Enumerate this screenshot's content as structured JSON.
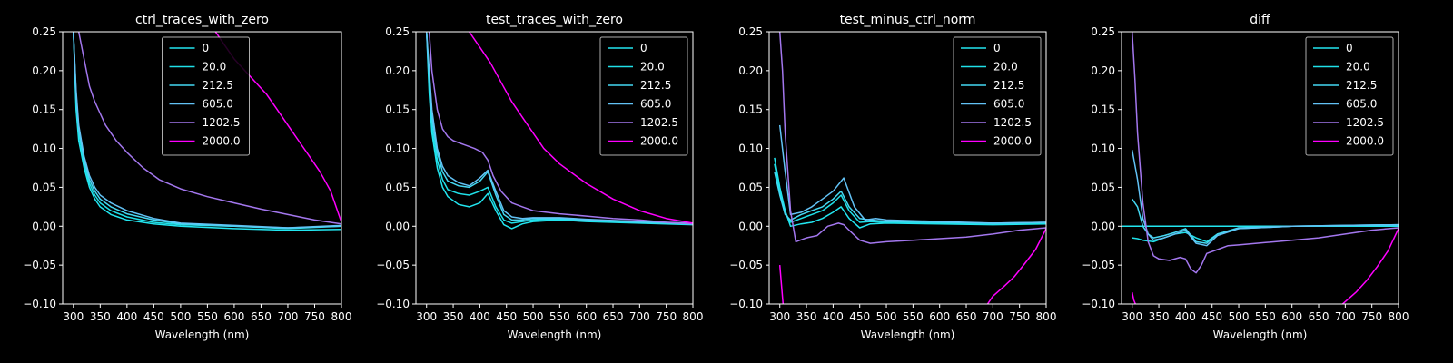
{
  "chart_data": [
    {
      "type": "line",
      "title": "ctrl_traces_with_zero",
      "xlabel": "Wavelength (nm)",
      "ylabel": "",
      "xlim": [
        280,
        800
      ],
      "ylim": [
        -0.1,
        0.25
      ],
      "xticks": [
        "300",
        "350",
        "400",
        "450",
        "500",
        "550",
        "600",
        "650",
        "700",
        "750",
        "800"
      ],
      "yticks": [
        "−0.10",
        "−0.05",
        "0.00",
        "0.05",
        "0.10",
        "0.15",
        "0.20",
        "0.25"
      ],
      "legend_position": "top-center",
      "grid": false,
      "series": [
        {
          "name": "0",
          "color": "#22e6f0",
          "x": [
            300,
            305,
            310,
            320,
            330,
            340,
            350,
            370,
            400,
            450,
            500,
            600,
            700,
            800
          ],
          "y": [
            0.25,
            0.15,
            0.11,
            0.075,
            0.05,
            0.035,
            0.025,
            0.015,
            0.008,
            0.003,
            0.0,
            -0.003,
            -0.005,
            -0.004
          ]
        },
        {
          "name": "20.0",
          "color": "#1fe0e8",
          "x": [
            300,
            305,
            310,
            320,
            330,
            340,
            350,
            370,
            400,
            450,
            500,
            600,
            700,
            800
          ],
          "y": [
            0.25,
            0.16,
            0.12,
            0.08,
            0.055,
            0.04,
            0.03,
            0.02,
            0.012,
            0.005,
            0.002,
            0.0,
            -0.003,
            0.0
          ]
        },
        {
          "name": "212.5",
          "color": "#44d8f2",
          "x": [
            300,
            305,
            310,
            320,
            330,
            340,
            350,
            370,
            400,
            450,
            500,
            600,
            700,
            800
          ],
          "y": [
            0.25,
            0.17,
            0.125,
            0.085,
            0.06,
            0.045,
            0.035,
            0.025,
            0.016,
            0.008,
            0.003,
            0.0,
            -0.002,
            0.0
          ]
        },
        {
          "name": "605.0",
          "color": "#62c2f5",
          "x": [
            300,
            305,
            310,
            320,
            330,
            340,
            350,
            370,
            400,
            450,
            500,
            600,
            700,
            800
          ],
          "y": [
            0.25,
            0.175,
            0.13,
            0.09,
            0.065,
            0.05,
            0.04,
            0.03,
            0.02,
            0.01,
            0.004,
            0.001,
            -0.002,
            0.001
          ]
        },
        {
          "name": "1202.5",
          "color": "#a377ee",
          "x": [
            310,
            320,
            330,
            340,
            350,
            360,
            370,
            380,
            400,
            430,
            460,
            500,
            550,
            600,
            650,
            700,
            750,
            800
          ],
          "y": [
            0.25,
            0.215,
            0.18,
            0.16,
            0.145,
            0.13,
            0.12,
            0.11,
            0.095,
            0.075,
            0.06,
            0.048,
            0.038,
            0.03,
            0.022,
            0.015,
            0.008,
            0.003
          ]
        },
        {
          "name": "2000.0",
          "color": "#ff00ff",
          "x": [
            565,
            580,
            600,
            620,
            640,
            660,
            680,
            700,
            720,
            740,
            760,
            780,
            800
          ],
          "y": [
            0.25,
            0.235,
            0.215,
            0.2,
            0.185,
            0.17,
            0.15,
            0.13,
            0.11,
            0.09,
            0.07,
            0.045,
            0.005
          ]
        }
      ]
    },
    {
      "type": "line",
      "title": "test_traces_with_zero",
      "xlabel": "Wavelength (nm)",
      "ylabel": "",
      "xlim": [
        280,
        800
      ],
      "ylim": [
        -0.1,
        0.25
      ],
      "xticks": [
        "300",
        "350",
        "400",
        "450",
        "500",
        "550",
        "600",
        "650",
        "700",
        "750",
        "800"
      ],
      "yticks": [
        "−0.10",
        "−0.05",
        "0.00",
        "0.05",
        "0.10",
        "0.15",
        "0.20",
        "0.25"
      ],
      "legend_position": "top-right",
      "grid": false,
      "series": [
        {
          "name": "0",
          "color": "#22e6f0",
          "x": [
            300,
            305,
            310,
            320,
            330,
            340,
            360,
            380,
            400,
            415,
            430,
            445,
            460,
            480,
            500,
            550,
            600,
            700,
            800
          ],
          "y": [
            0.25,
            0.17,
            0.12,
            0.075,
            0.05,
            0.038,
            0.028,
            0.025,
            0.03,
            0.042,
            0.02,
            0.002,
            -0.003,
            0.003,
            0.006,
            0.008,
            0.006,
            0.004,
            0.002
          ]
        },
        {
          "name": "20.0",
          "color": "#1fe0e8",
          "x": [
            300,
            305,
            310,
            320,
            330,
            340,
            360,
            380,
            400,
            415,
            430,
            445,
            460,
            480,
            500,
            550,
            600,
            700,
            800
          ],
          "y": [
            0.25,
            0.18,
            0.13,
            0.085,
            0.06,
            0.047,
            0.042,
            0.04,
            0.045,
            0.05,
            0.025,
            0.008,
            0.004,
            0.006,
            0.008,
            0.009,
            0.007,
            0.005,
            0.003
          ]
        },
        {
          "name": "212.5",
          "color": "#44d8f2",
          "x": [
            300,
            305,
            310,
            320,
            330,
            340,
            360,
            380,
            400,
            415,
            430,
            445,
            460,
            480,
            500,
            550,
            600,
            700,
            800
          ],
          "y": [
            0.25,
            0.19,
            0.14,
            0.095,
            0.07,
            0.058,
            0.052,
            0.05,
            0.058,
            0.07,
            0.04,
            0.015,
            0.008,
            0.008,
            0.01,
            0.01,
            0.008,
            0.005,
            0.003
          ]
        },
        {
          "name": "605.0",
          "color": "#62c2f5",
          "x": [
            300,
            305,
            310,
            320,
            330,
            340,
            360,
            380,
            400,
            415,
            430,
            445,
            460,
            480,
            500,
            550,
            600,
            700,
            800
          ],
          "y": [
            0.25,
            0.2,
            0.15,
            0.1,
            0.077,
            0.065,
            0.056,
            0.052,
            0.062,
            0.072,
            0.045,
            0.02,
            0.012,
            0.01,
            0.011,
            0.011,
            0.009,
            0.006,
            0.004
          ]
        },
        {
          "name": "1202.5",
          "color": "#a377ee",
          "x": [
            305,
            310,
            320,
            330,
            340,
            350,
            370,
            390,
            405,
            415,
            425,
            440,
            460,
            480,
            500,
            550,
            600,
            650,
            700,
            750,
            800
          ],
          "y": [
            0.25,
            0.2,
            0.15,
            0.125,
            0.115,
            0.11,
            0.105,
            0.1,
            0.095,
            0.085,
            0.065,
            0.045,
            0.03,
            0.025,
            0.02,
            0.016,
            0.013,
            0.01,
            0.008,
            0.005,
            0.003
          ]
        },
        {
          "name": "2000.0",
          "color": "#ff00ff",
          "x": [
            380,
            400,
            420,
            440,
            460,
            480,
            500,
            520,
            550,
            600,
            650,
            700,
            750,
            800
          ],
          "y": [
            0.25,
            0.23,
            0.21,
            0.185,
            0.16,
            0.14,
            0.12,
            0.1,
            0.08,
            0.055,
            0.035,
            0.02,
            0.01,
            0.004
          ]
        }
      ]
    },
    {
      "type": "line",
      "title": "test_minus_ctrl_norm",
      "xlabel": "Wavelength (nm)",
      "ylabel": "",
      "xlim": [
        280,
        800
      ],
      "ylim": [
        -0.1,
        0.25
      ],
      "xticks": [
        "300",
        "350",
        "400",
        "450",
        "500",
        "550",
        "600",
        "650",
        "700",
        "750",
        "800"
      ],
      "yticks": [
        "−0.10",
        "−0.05",
        "0.00",
        "0.05",
        "0.10",
        "0.15",
        "0.20",
        "0.25"
      ],
      "legend_position": "top-right",
      "grid": false,
      "series": [
        {
          "name": "0",
          "color": "#22e6f0",
          "x": [
            290,
            300,
            310,
            320,
            340,
            360,
            380,
            400,
            415,
            430,
            450,
            470,
            500,
            600,
            700,
            800
          ],
          "y": [
            0.088,
            0.05,
            0.02,
            0.0,
            0.003,
            0.005,
            0.01,
            0.018,
            0.025,
            0.01,
            -0.002,
            0.003,
            0.004,
            0.003,
            0.002,
            0.003
          ]
        },
        {
          "name": "20.0",
          "color": "#1fe0e8",
          "x": [
            290,
            300,
            310,
            320,
            340,
            360,
            380,
            400,
            415,
            430,
            450,
            470,
            500,
            600,
            700,
            800
          ],
          "y": [
            0.08,
            0.045,
            0.018,
            0.005,
            0.01,
            0.015,
            0.02,
            0.03,
            0.04,
            0.02,
            0.005,
            0.006,
            0.005,
            0.004,
            0.003,
            0.004
          ]
        },
        {
          "name": "212.5",
          "color": "#44d8f2",
          "x": [
            290,
            300,
            310,
            320,
            340,
            360,
            380,
            400,
            415,
            430,
            450,
            470,
            500,
            600,
            700,
            800
          ],
          "y": [
            0.07,
            0.04,
            0.015,
            0.008,
            0.015,
            0.02,
            0.025,
            0.035,
            0.045,
            0.025,
            0.01,
            0.008,
            0.006,
            0.005,
            0.004,
            0.005
          ]
        },
        {
          "name": "605.0",
          "color": "#62c2f5",
          "x": [
            300,
            310,
            320,
            340,
            360,
            380,
            400,
            420,
            440,
            460,
            480,
            500,
            600,
            700,
            800
          ],
          "y": [
            0.13,
            0.07,
            0.015,
            0.018,
            0.025,
            0.035,
            0.045,
            0.062,
            0.025,
            0.008,
            0.01,
            0.008,
            0.006,
            0.004,
            0.005
          ]
        },
        {
          "name": "1202.5",
          "color": "#a377ee",
          "x": [
            300,
            305,
            310,
            320,
            330,
            350,
            370,
            390,
            410,
            420,
            430,
            450,
            470,
            500,
            550,
            600,
            650,
            700,
            750,
            800
          ],
          "y": [
            0.25,
            0.2,
            0.12,
            0.02,
            -0.02,
            -0.015,
            -0.012,
            0.0,
            0.004,
            0.002,
            -0.005,
            -0.018,
            -0.022,
            -0.02,
            -0.018,
            -0.016,
            -0.014,
            -0.01,
            -0.005,
            -0.002
          ]
        },
        {
          "name": "2000.0",
          "color": "#ff00ff",
          "x": [
            300,
            303,
            306
          ],
          "y": [
            -0.05,
            -0.075,
            -0.1
          ]
        },
        {
          "name": "2000.0",
          "color": "#ff00ff",
          "x": [
            690,
            700,
            720,
            740,
            760,
            780,
            800
          ],
          "y": [
            -0.1,
            -0.09,
            -0.078,
            -0.065,
            -0.048,
            -0.03,
            -0.003
          ]
        }
      ]
    },
    {
      "type": "line",
      "title": "diff",
      "xlabel": "Wavelength (nm)",
      "ylabel": "",
      "xlim": [
        280,
        800
      ],
      "ylim": [
        -0.1,
        0.25
      ],
      "xticks": [
        "300",
        "350",
        "400",
        "450",
        "500",
        "550",
        "600",
        "650",
        "700",
        "750",
        "800"
      ],
      "yticks": [
        "−0.10",
        "−0.05",
        "0.00",
        "0.05",
        "0.10",
        "0.15",
        "0.20",
        "0.25"
      ],
      "legend_position": "top-right",
      "grid": false,
      "series": [
        {
          "name": "0",
          "color": "#22e6f0",
          "x": [
            280,
            800
          ],
          "y": [
            0.0,
            0.0
          ]
        },
        {
          "name": "20.0",
          "color": "#1fe0e8",
          "x": [
            300,
            310,
            320,
            340,
            360,
            380,
            400,
            420,
            440,
            460,
            500,
            600,
            700,
            800
          ],
          "y": [
            -0.015,
            -0.016,
            -0.018,
            -0.02,
            -0.015,
            -0.01,
            -0.008,
            -0.015,
            -0.02,
            -0.01,
            -0.003,
            0.0,
            0.0,
            0.001
          ]
        },
        {
          "name": "212.5",
          "color": "#44d8f2",
          "x": [
            300,
            310,
            320,
            330,
            340,
            360,
            380,
            400,
            420,
            440,
            460,
            500,
            600,
            700,
            800
          ],
          "y": [
            0.035,
            0.025,
            0.0,
            -0.01,
            -0.015,
            -0.012,
            -0.008,
            -0.003,
            -0.02,
            -0.022,
            -0.01,
            -0.002,
            0.0,
            0.001,
            0.002
          ]
        },
        {
          "name": "605.0",
          "color": "#62c2f5",
          "x": [
            300,
            310,
            320,
            330,
            340,
            360,
            380,
            400,
            420,
            440,
            460,
            500,
            600,
            700,
            800
          ],
          "y": [
            0.098,
            0.06,
            0.01,
            -0.01,
            -0.018,
            -0.015,
            -0.01,
            -0.005,
            -0.022,
            -0.025,
            -0.012,
            -0.003,
            0.0,
            0.001,
            0.002
          ]
        },
        {
          "name": "1202.5",
          "color": "#a377ee",
          "x": [
            300,
            305,
            310,
            320,
            330,
            340,
            350,
            370,
            390,
            400,
            410,
            420,
            430,
            440,
            460,
            480,
            500,
            550,
            600,
            650,
            700,
            750,
            800
          ],
          "y": [
            0.25,
            0.19,
            0.12,
            0.03,
            -0.02,
            -0.038,
            -0.042,
            -0.044,
            -0.04,
            -0.042,
            -0.055,
            -0.06,
            -0.05,
            -0.035,
            -0.03,
            -0.025,
            -0.024,
            -0.021,
            -0.018,
            -0.015,
            -0.01,
            -0.005,
            -0.002
          ]
        },
        {
          "name": "2000.0",
          "color": "#ff00ff",
          "x": [
            300,
            303,
            306
          ],
          "y": [
            -0.085,
            -0.095,
            -0.1
          ]
        },
        {
          "name": "2000.0",
          "color": "#ff00ff",
          "x": [
            695,
            700,
            720,
            740,
            760,
            780,
            800
          ],
          "y": [
            -0.1,
            -0.097,
            -0.085,
            -0.07,
            -0.052,
            -0.032,
            -0.003
          ]
        }
      ]
    }
  ]
}
